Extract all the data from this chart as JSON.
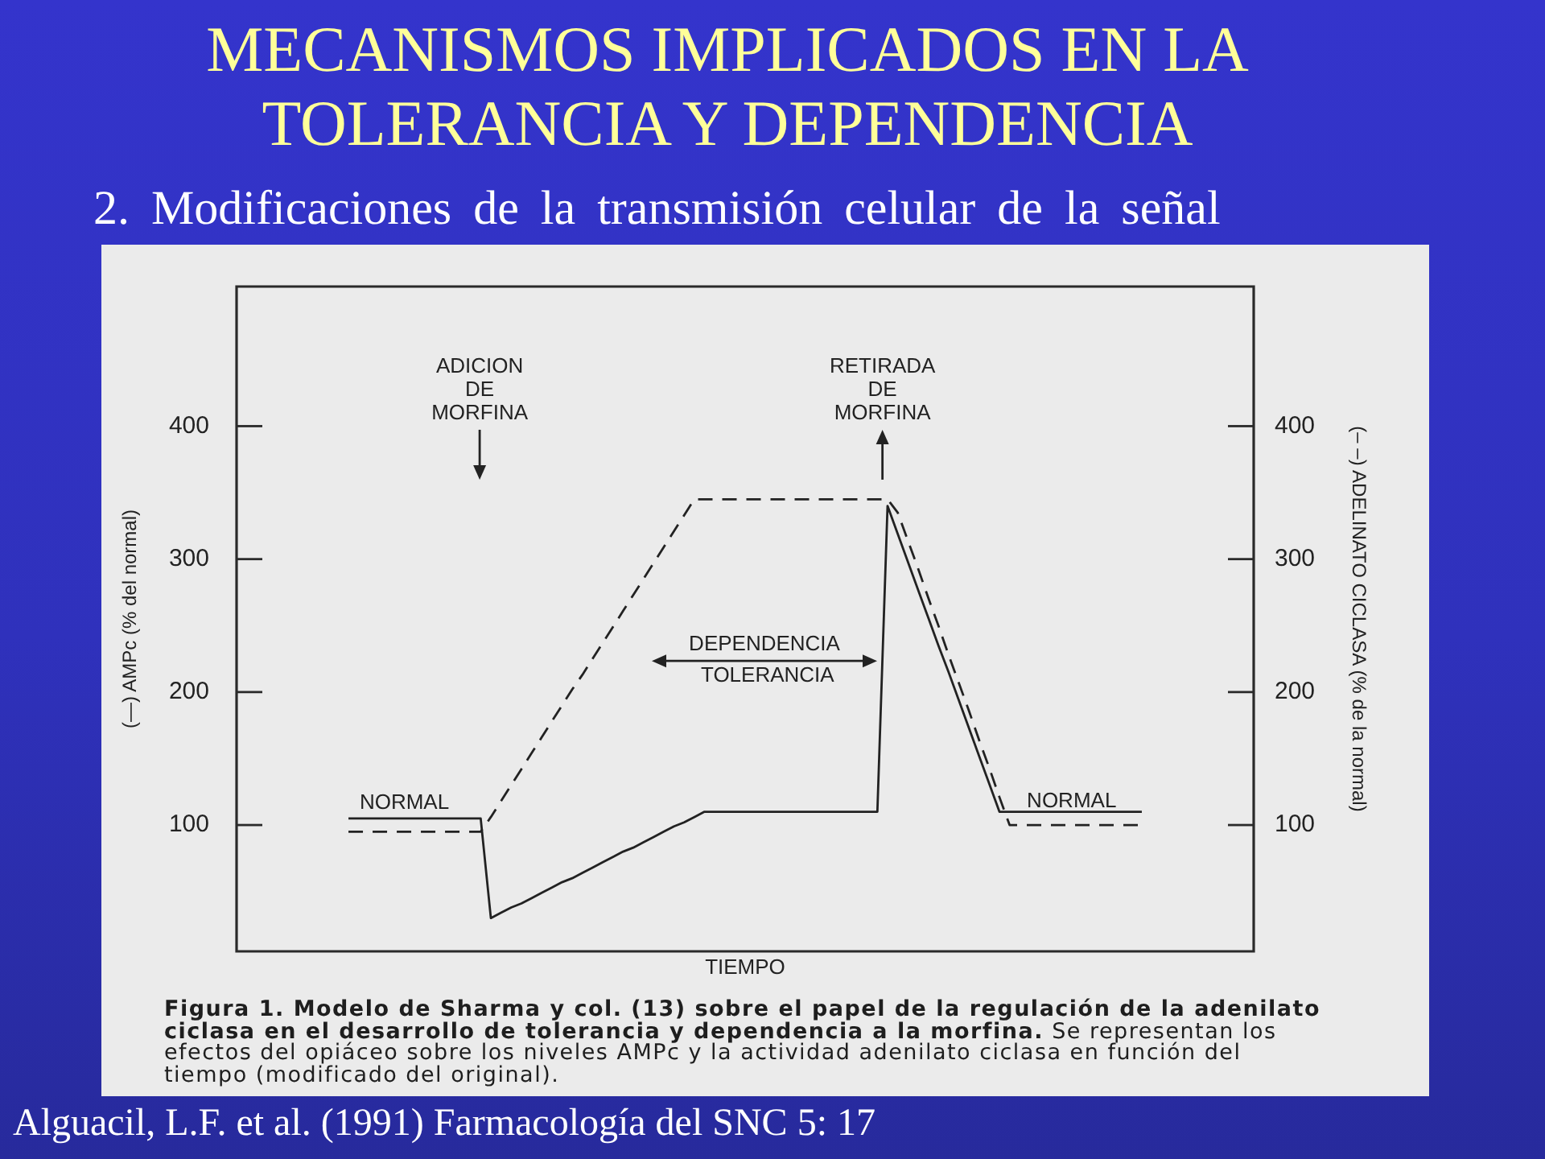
{
  "chart_data": {
    "type": "line",
    "title": "MECANISMOS IMPLICADOS EN LA TOLERANCIA Y DEPENDENCIA",
    "subtitle": "2. Modificaciones de la transmisión celular de la señal",
    "xlabel": "TIEMPO",
    "ylabel": "(—) AMPc (% del normal)",
    "y2label": "(– –) ADELINATO CICLASA (% de la normal)",
    "categories": [
      null,
      null,
      null,
      null,
      null,
      null,
      null,
      null,
      null,
      null,
      null,
      null,
      null,
      null,
      null,
      null,
      null,
      null,
      null,
      null,
      null,
      null,
      null,
      null,
      null,
      null,
      null,
      null,
      null,
      null,
      null,
      null,
      null,
      null,
      null,
      null,
      null,
      null,
      null,
      null,
      null,
      null,
      null,
      null,
      null,
      null,
      null,
      null,
      null,
      null,
      null,
      null,
      null,
      null,
      null,
      null,
      null,
      null,
      null,
      null,
      null,
      null,
      null,
      null,
      null,
      null,
      null,
      null,
      null,
      null,
      null,
      null,
      null,
      null,
      null,
      null,
      null,
      null,
      null,
      null,
      null,
      null,
      null,
      null,
      null,
      null,
      null,
      null,
      null,
      null,
      null,
      null,
      null,
      null,
      null,
      null,
      null,
      null,
      null,
      null,
      null
    ],
    "ylim": [
      5,
      505
    ],
    "yticks": [
      100,
      200,
      300,
      400
    ],
    "y2lim": [
      5,
      505
    ],
    "y2ticks": [
      100,
      200,
      300,
      400
    ],
    "tick_labels": "y",
    "series": [
      {
        "color": "#222222",
        "line_style": "solid",
        "values": [
          null,
          null,
          null,
          null,
          null,
          null,
          null,
          null,
          null,
          null,
          null,
          105,
          105,
          105,
          105,
          105,
          105,
          105,
          105,
          105,
          105,
          105,
          105,
          105,
          105,
          30,
          34,
          38,
          41,
          45,
          49,
          53,
          57,
          60,
          64,
          68,
          72,
          76,
          80,
          83,
          87,
          91,
          95,
          99,
          102,
          106,
          110,
          110,
          110,
          110,
          110,
          110,
          110,
          110,
          110,
          110,
          110,
          110,
          110,
          110,
          110,
          110,
          110,
          110,
          340,
          319,
          298,
          277,
          256,
          235,
          215,
          194,
          173,
          152,
          131,
          110,
          110,
          110,
          110,
          110,
          110,
          110,
          110,
          110,
          110,
          110,
          110,
          110,
          110,
          110,
          null,
          null,
          null,
          null,
          null,
          null,
          null,
          null,
          null,
          null,
          null
        ]
      },
      {
        "color": "#222222",
        "line_style": "dashed",
        "values": [
          null,
          null,
          null,
          null,
          null,
          null,
          null,
          null,
          null,
          null,
          null,
          95,
          95,
          95,
          95,
          95,
          95,
          95,
          95,
          95,
          95,
          95,
          95,
          95,
          95,
          106,
          118,
          130,
          142,
          154,
          166,
          178,
          190,
          202,
          213,
          225,
          237,
          249,
          261,
          273,
          285,
          297,
          309,
          321,
          333,
          345,
          345,
          345,
          345,
          345,
          345,
          345,
          345,
          345,
          345,
          345,
          345,
          345,
          345,
          345,
          345,
          345,
          345,
          345,
          345,
          335,
          314,
          293,
          271,
          250,
          228,
          207,
          186,
          164,
          143,
          121,
          100,
          100,
          100,
          100,
          100,
          100,
          100,
          100,
          100,
          100,
          100,
          100,
          100,
          100,
          null,
          null,
          null,
          null,
          null,
          null,
          null,
          null,
          null,
          null,
          null
        ]
      }
    ],
    "annotations": [
      "ADICION DE MORFINA",
      "RETIRADA DE MORFINA",
      "DEPENDENCIA",
      "TOLERANCIA",
      "NORMAL",
      "NORMAL",
      "Figura 1. Modelo de Sharma y col. (13) sobre el papel de la regulación de la adenilato ciclasa en el desarrollo de tolerancia y dependencia a la morfina.",
      "Se representan los efectos del opiáceo sobre los niveles AMPc y la actividad adenilato ciclasa en función del tiempo (modificado del original).",
      "Alguacil, L.F. et al. (1991) Farmacología del SNC 5: 17"
    ]
  }
}
